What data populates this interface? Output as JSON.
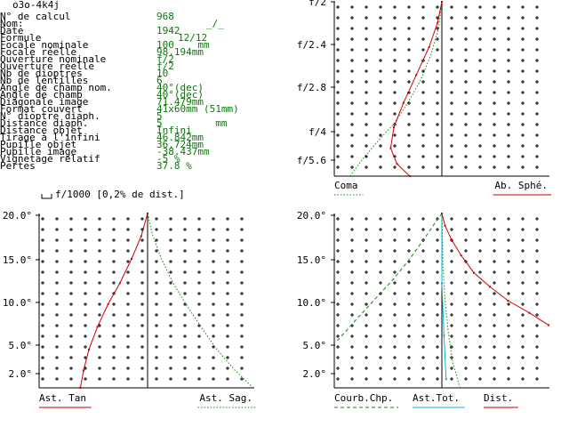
{
  "header": {
    "title": "o3o-4k4j"
  },
  "info": [
    {
      "label": "N° de calcul",
      "value": "968"
    },
    {
      "label": "Nom:",
      "value": "_/_"
    },
    {
      "label": "Date",
      "value": "1942"
    },
    {
      "label": "Formule",
      "value": "12/12"
    },
    {
      "label": "Focale nominale",
      "value": "100    mm"
    },
    {
      "label": "Focale réelle",
      "value": "98.194mm"
    },
    {
      "label": "Ouverture nominale",
      "value": "f/2"
    },
    {
      "label": "Ouverture réelle",
      "value": "f/2"
    },
    {
      "label": "Nb de dioptres",
      "value": "10"
    },
    {
      "label": "Nb de lentilles",
      "value": "6"
    },
    {
      "label": "Angle de champ nom.",
      "value": "40°(dec)"
    },
    {
      "label": "Angle de champ",
      "value": "40°(dec)"
    },
    {
      "label": "Diagonale image",
      "value": "71.479mm"
    },
    {
      "label": "Format couvert",
      "value": "41x60mm (51mm)"
    },
    {
      "label": "N° dioptre diaph.",
      "value": "5"
    },
    {
      "label": "Distance diaph.",
      "value": "5         mm"
    },
    {
      "label": "Distance objet",
      "value": "Infini"
    },
    {
      "label": "Tirage à l'infini",
      "value": "46.842mm"
    },
    {
      "label": "Pupille objet",
      "value": "36.724mm"
    },
    {
      "label": "Pupille image",
      "value": "-38.437mm"
    },
    {
      "label": "Vignetage relatif",
      "value": "-5 %"
    },
    {
      "label": "Pertes",
      "value": "37.8 %"
    }
  ],
  "scale_note": "f/1000 [0,2% de dist.]",
  "colors": {
    "green": "#0a8a0a",
    "red": "#cc0000",
    "cyan": "#00b8d8",
    "black": "#000000"
  },
  "chart_data": [
    {
      "type": "line",
      "panel": "spherical-coma",
      "y_ticks": [
        "f/2",
        "f/2.4",
        "f/2.8",
        "f/4",
        "f/5.6"
      ],
      "series": [
        {
          "name": "Coma",
          "color": "#0a8a0a",
          "style": "dotted",
          "points": [
            [
              -0.86,
              0.0
            ],
            [
              -0.74,
              0.1
            ],
            [
              -0.6,
              0.2
            ],
            [
              -0.45,
              0.3
            ],
            [
              -0.32,
              0.42
            ],
            [
              -0.2,
              0.55
            ],
            [
              -0.1,
              0.7
            ],
            [
              -0.03,
              0.85
            ],
            [
              0.0,
              1.0
            ]
          ]
        },
        {
          "name": "Ab. Sphé.",
          "color": "#cc0000",
          "style": "solid",
          "points": [
            [
              -0.3,
              0.0
            ],
            [
              -0.42,
              0.07
            ],
            [
              -0.48,
              0.16
            ],
            [
              -0.45,
              0.28
            ],
            [
              -0.36,
              0.42
            ],
            [
              -0.24,
              0.58
            ],
            [
              -0.12,
              0.74
            ],
            [
              -0.04,
              0.88
            ],
            [
              0.0,
              1.0
            ]
          ]
        }
      ],
      "grid": true,
      "legend": "bottom"
    },
    {
      "type": "line",
      "panel": "astigmatism",
      "y_ticks": [
        "20.0°",
        "15.0°",
        "10.0°",
        "5.0°",
        "2.0°"
      ],
      "series": [
        {
          "name": "Ast. Tan",
          "color": "#cc0000",
          "style": "solid",
          "points": [
            [
              -0.63,
              0.0
            ],
            [
              -0.6,
              0.1
            ],
            [
              -0.55,
              0.22
            ],
            [
              -0.47,
              0.35
            ],
            [
              -0.37,
              0.48
            ],
            [
              -0.26,
              0.6
            ],
            [
              -0.15,
              0.74
            ],
            [
              -0.06,
              0.87
            ],
            [
              0.0,
              1.0
            ]
          ]
        },
        {
          "name": "Ast. Sag.",
          "color": "#0a8a0a",
          "style": "dotted",
          "points": [
            [
              0.99,
              0.0
            ],
            [
              0.82,
              0.1
            ],
            [
              0.65,
              0.22
            ],
            [
              0.5,
              0.35
            ],
            [
              0.36,
              0.48
            ],
            [
              0.24,
              0.6
            ],
            [
              0.13,
              0.74
            ],
            [
              0.05,
              0.87
            ],
            [
              0.0,
              1.0
            ]
          ]
        }
      ],
      "grid": true,
      "legend": "bottom"
    },
    {
      "type": "line",
      "panel": "field-distortion",
      "y_ticks": [
        "20.0°",
        "15.0°",
        "10.0°",
        "5.0°",
        "2.0°"
      ],
      "series": [
        {
          "name": "Courb.Chp.",
          "color": "#0a8a0a",
          "style": "dashed",
          "points": [
            [
              -0.98,
              0.27
            ],
            [
              -0.82,
              0.38
            ],
            [
              -0.64,
              0.5
            ],
            [
              -0.46,
              0.62
            ],
            [
              -0.3,
              0.74
            ],
            [
              -0.16,
              0.86
            ],
            [
              -0.06,
              0.95
            ],
            [
              0.0,
              1.0
            ]
          ]
        },
        {
          "name": "Ast.Tot.",
          "color": "#00b8d8",
          "style": "solid",
          "points": [
            [
              0.04,
              0.05
            ],
            [
              0.02,
              0.3
            ],
            [
              0.0,
              0.6
            ],
            [
              0.0,
              1.0
            ]
          ]
        },
        {
          "name": "Dist.",
          "color": "#cc0000",
          "style": "solid",
          "points": [
            [
              1.0,
              0.36
            ],
            [
              0.82,
              0.43
            ],
            [
              0.62,
              0.5
            ],
            [
              0.45,
              0.58
            ],
            [
              0.3,
              0.66
            ],
            [
              0.18,
              0.76
            ],
            [
              0.09,
              0.85
            ],
            [
              0.03,
              0.93
            ],
            [
              0.0,
              1.0
            ]
          ]
        }
      ],
      "extra_series": [
        {
          "color": "#0a8a0a",
          "style": "dotted",
          "points": [
            [
              0.17,
              0.0
            ],
            [
              0.1,
              0.15
            ],
            [
              0.06,
              0.32
            ],
            [
              0.03,
              0.5
            ],
            [
              0.01,
              0.7
            ],
            [
              0.0,
              1.0
            ]
          ]
        }
      ],
      "grid": true,
      "legend": "bottom"
    }
  ]
}
